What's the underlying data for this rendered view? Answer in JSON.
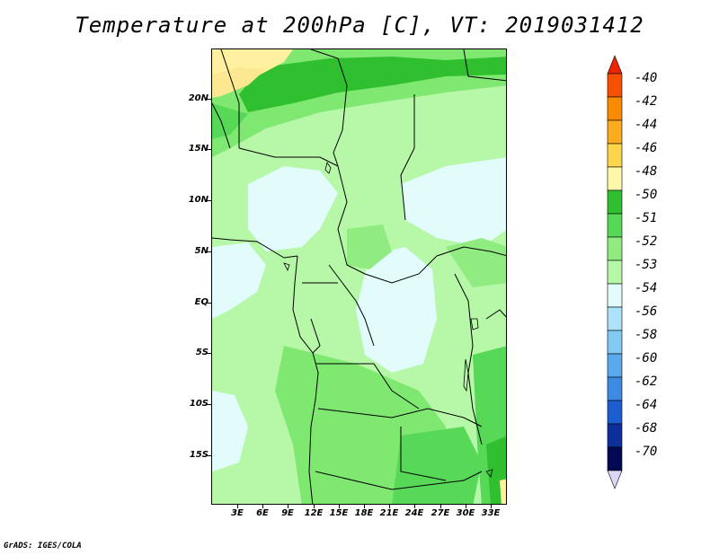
{
  "title": "Temperature at 200hPa [C], VT: 2019031412",
  "credit": "GrADS: IGES/COLA",
  "lat_labels": [
    "20N",
    "15N",
    "10N",
    "5N",
    "EQ",
    "5S",
    "10S",
    "15S"
  ],
  "lon_labels": [
    "3E",
    "6E",
    "9E",
    "12E",
    "15E",
    "18E",
    "21E",
    "24E",
    "27E",
    "30E",
    "33E"
  ],
  "colorbar": {
    "levels": [
      "-40",
      "-42",
      "-44",
      "-46",
      "-48",
      "-50",
      "-51",
      "-52",
      "-53",
      "-54",
      "-56",
      "-58",
      "-60",
      "-62",
      "-64",
      "-68",
      "-70"
    ],
    "colors": [
      "#ee2400",
      "#f65000",
      "#fa8a00",
      "#fbac1e",
      "#fdd54a",
      "#fff8a8",
      "#2fbf2f",
      "#57d957",
      "#90ec80",
      "#b6f7a8",
      "#e2fcfc",
      "#aee2fa",
      "#82c9f4",
      "#5aa9ec",
      "#3c8ae2",
      "#1c5ed0",
      "#0c2f9c",
      "#020852",
      "#dcd6f6"
    ]
  },
  "field_colors": {
    "minus_50": "#fff8a8",
    "minus_51": "#fbe890",
    "minus_52": "#2fbf2f",
    "minus_53": "#57d957",
    "minus_53b": "#7ee870",
    "minus_54": "#b6f7a8",
    "minus_56": "#e2fcfc"
  }
}
